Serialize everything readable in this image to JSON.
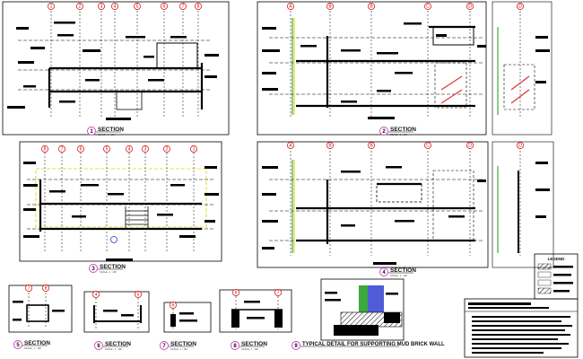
{
  "sheet": {
    "title": "TYPICAL DETAIL FOR SUPPORTING MUD BRICK WALL",
    "colors": {
      "line": "#000000",
      "grid_bubble": "#cc0000",
      "title_circle": "#d040c0",
      "accent_green": "#1a9a1a",
      "accent_yellow": "#e0d200",
      "accent_blue": "#2233cc",
      "accent_red": "#dd3333"
    }
  },
  "views": [
    {
      "number": "1",
      "title": "SECTION",
      "scale": "SCALE - 1 : 100",
      "grid_labels": [
        "1",
        "2",
        "3",
        "4",
        "5",
        "6",
        "7",
        "8"
      ]
    },
    {
      "number": "2",
      "title": "SECTION",
      "scale": "SCALE - 1 : 100",
      "grid_labels": [
        "A",
        "B",
        "B",
        "C",
        "D"
      ],
      "side_grid_labels": [
        "D"
      ]
    },
    {
      "number": "3",
      "title": "SECTION",
      "scale": "SCALE - 1 : 100",
      "grid_labels": [
        "8",
        "7",
        "6",
        "5",
        "4",
        "3",
        "2",
        "1"
      ]
    },
    {
      "number": "4",
      "title": "SECTION",
      "scale": "SCALE - 1 : 100",
      "grid_labels": [
        "A",
        "B",
        "B",
        "C",
        "D"
      ],
      "side_grid_labels": [
        "D"
      ]
    },
    {
      "number": "5",
      "title": "SECTION",
      "scale": "SCALE - 1 : 100",
      "grid_labels": [
        "7",
        "8"
      ]
    },
    {
      "number": "6",
      "title": "SECTION",
      "scale": "SCALE - 1 : 100",
      "grid_labels": [
        "4",
        "5"
      ]
    },
    {
      "number": "7",
      "title": "SECTION",
      "scale": "SCALE - 1 : 100",
      "grid_labels": [
        "6"
      ]
    },
    {
      "number": "8",
      "title": "SECTION",
      "scale": "SCALE - 1 : 100",
      "grid_labels": [
        "6",
        "7"
      ]
    },
    {
      "number": "9",
      "title": "TYPICAL DETAIL FOR SUPPORTING MUD BRICK WALL",
      "scale": ""
    }
  ],
  "legend": {
    "title": "LEGEND"
  }
}
